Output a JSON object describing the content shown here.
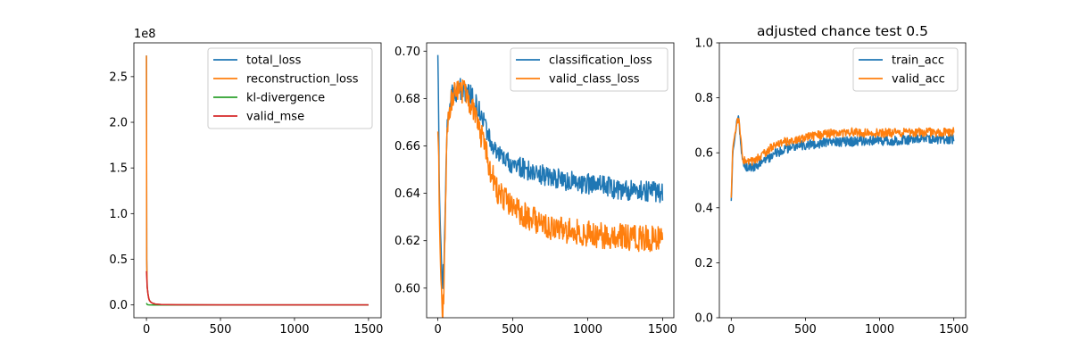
{
  "chart_data": [
    {
      "type": "line",
      "title": "",
      "xlabel": "",
      "ylabel": "",
      "offset_text": "1e8",
      "xlim": [
        -85,
        1585
      ],
      "ylim": [
        -0.14,
        2.87
      ],
      "xticks": [
        0,
        500,
        1000,
        1500
      ],
      "xtick_labels": [
        "0",
        "500",
        "1000",
        "1500"
      ],
      "yticks": [
        0,
        0.5,
        1.0,
        1.5,
        2.0,
        2.5
      ],
      "ytick_labels": [
        "0.0",
        "0.5",
        "1.0",
        "1.5",
        "2.0",
        "2.5"
      ],
      "grid": false,
      "legend_position": "upper right",
      "series": [
        {
          "name": "total_loss",
          "color": "#1f77b4",
          "x": [
            0,
            2,
            5,
            10,
            15,
            20,
            30,
            40,
            60,
            100,
            200,
            500,
            1000,
            1500
          ],
          "y": [
            2.73,
            0.5,
            0.2,
            0.12,
            0.08,
            0.05,
            0.03,
            0.02,
            0.01,
            0.004,
            0.002,
            0.001,
            0.001,
            0.001
          ]
        },
        {
          "name": "reconstruction_loss",
          "color": "#ff7f0e",
          "x": [
            0,
            2,
            5,
            10,
            15,
            20,
            30,
            40,
            60,
            100,
            200,
            500,
            1000,
            1500
          ],
          "y": [
            2.73,
            0.5,
            0.2,
            0.12,
            0.08,
            0.05,
            0.03,
            0.02,
            0.01,
            0.004,
            0.002,
            0.001,
            0.001,
            0.001
          ]
        },
        {
          "name": "kl-divergence",
          "color": "#2ca02c",
          "x": [
            0,
            5,
            10,
            20,
            50,
            100,
            500,
            1000,
            1500
          ],
          "y": [
            0.02,
            0.005,
            0.002,
            0.001,
            0.0,
            0.0,
            0.0,
            0.0,
            0.0
          ]
        },
        {
          "name": "valid_mse",
          "color": "#d62728",
          "x": [
            0,
            5,
            10,
            15,
            20,
            30,
            40,
            60,
            100,
            200,
            500,
            1000,
            1500
          ],
          "y": [
            0.37,
            0.2,
            0.12,
            0.07,
            0.05,
            0.03,
            0.02,
            0.01,
            0.004,
            0.002,
            0.001,
            0.001,
            0.001
          ]
        }
      ]
    },
    {
      "type": "line",
      "title": "",
      "xlabel": "",
      "ylabel": "",
      "xlim": [
        -75,
        1575
      ],
      "ylim": [
        0.5875,
        0.7035
      ],
      "xticks": [
        0,
        500,
        1000,
        1500
      ],
      "xtick_labels": [
        "0",
        "500",
        "1000",
        "1500"
      ],
      "yticks": [
        0.6,
        0.62,
        0.64,
        0.66,
        0.68,
        0.7
      ],
      "ytick_labels": [
        "0.60",
        "0.62",
        "0.64",
        "0.66",
        "0.68",
        "0.70"
      ],
      "grid": false,
      "legend_position": "upper right",
      "series": [
        {
          "name": "classification_loss",
          "color": "#1f77b4",
          "x": [
            0,
            5,
            10,
            20,
            30,
            40,
            50,
            60,
            80,
            100,
            150,
            200,
            250,
            300,
            350,
            400,
            500,
            600,
            700,
            800,
            900,
            1000,
            1100,
            1200,
            1300,
            1400,
            1500
          ],
          "y": [
            0.699,
            0.675,
            0.64,
            0.62,
            0.6,
            0.61,
            0.635,
            0.665,
            0.678,
            0.682,
            0.684,
            0.683,
            0.678,
            0.671,
            0.662,
            0.656,
            0.652,
            0.65,
            0.648,
            0.646,
            0.645,
            0.644,
            0.643,
            0.642,
            0.641,
            0.641,
            0.64
          ]
        },
        {
          "name": "valid_class_loss",
          "color": "#ff7f0e",
          "x": [
            0,
            5,
            10,
            20,
            30,
            40,
            50,
            60,
            80,
            100,
            150,
            200,
            250,
            300,
            350,
            400,
            500,
            600,
            700,
            800,
            900,
            1000,
            1100,
            1200,
            1300,
            1400,
            1500
          ],
          "y": [
            0.667,
            0.66,
            0.63,
            0.605,
            0.591,
            0.597,
            0.63,
            0.665,
            0.677,
            0.681,
            0.684,
            0.681,
            0.673,
            0.662,
            0.65,
            0.641,
            0.634,
            0.63,
            0.627,
            0.625,
            0.624,
            0.623,
            0.622,
            0.622,
            0.621,
            0.621,
            0.621
          ]
        }
      ]
    },
    {
      "type": "line",
      "title": "adjusted chance test 0.5",
      "xlabel": "",
      "ylabel": "",
      "xlim": [
        -80,
        1580
      ],
      "ylim": [
        0.0,
        1.0
      ],
      "xticks": [
        0,
        500,
        1000,
        1500
      ],
      "xtick_labels": [
        "0",
        "500",
        "1000",
        "1500"
      ],
      "yticks": [
        0.0,
        0.2,
        0.4,
        0.6,
        0.8,
        1.0
      ],
      "ytick_labels": [
        "0.0",
        "0.2",
        "0.4",
        "0.6",
        "0.8",
        "1.0"
      ],
      "grid": false,
      "legend_position": "upper right",
      "series": [
        {
          "name": "train_acc",
          "color": "#1f77b4",
          "x": [
            0,
            5,
            10,
            20,
            30,
            40,
            50,
            60,
            70,
            80,
            100,
            150,
            200,
            250,
            300,
            400,
            500,
            600,
            700,
            800,
            900,
            1000,
            1100,
            1200,
            1300,
            1400,
            1500
          ],
          "y": [
            0.42,
            0.5,
            0.6,
            0.63,
            0.68,
            0.71,
            0.72,
            0.66,
            0.6,
            0.57,
            0.55,
            0.55,
            0.56,
            0.58,
            0.6,
            0.62,
            0.63,
            0.635,
            0.64,
            0.64,
            0.645,
            0.645,
            0.645,
            0.648,
            0.65,
            0.65,
            0.65
          ]
        },
        {
          "name": "valid_acc",
          "color": "#ff7f0e",
          "x": [
            0,
            5,
            10,
            20,
            30,
            40,
            50,
            60,
            70,
            80,
            100,
            150,
            200,
            250,
            300,
            400,
            500,
            600,
            700,
            800,
            900,
            1000,
            1100,
            1200,
            1300,
            1400,
            1500
          ],
          "y": [
            0.44,
            0.52,
            0.62,
            0.65,
            0.69,
            0.72,
            0.72,
            0.67,
            0.61,
            0.58,
            0.56,
            0.57,
            0.59,
            0.61,
            0.63,
            0.645,
            0.655,
            0.665,
            0.672,
            0.675,
            0.672,
            0.672,
            0.673,
            0.673,
            0.675,
            0.675,
            0.676
          ]
        }
      ]
    }
  ]
}
